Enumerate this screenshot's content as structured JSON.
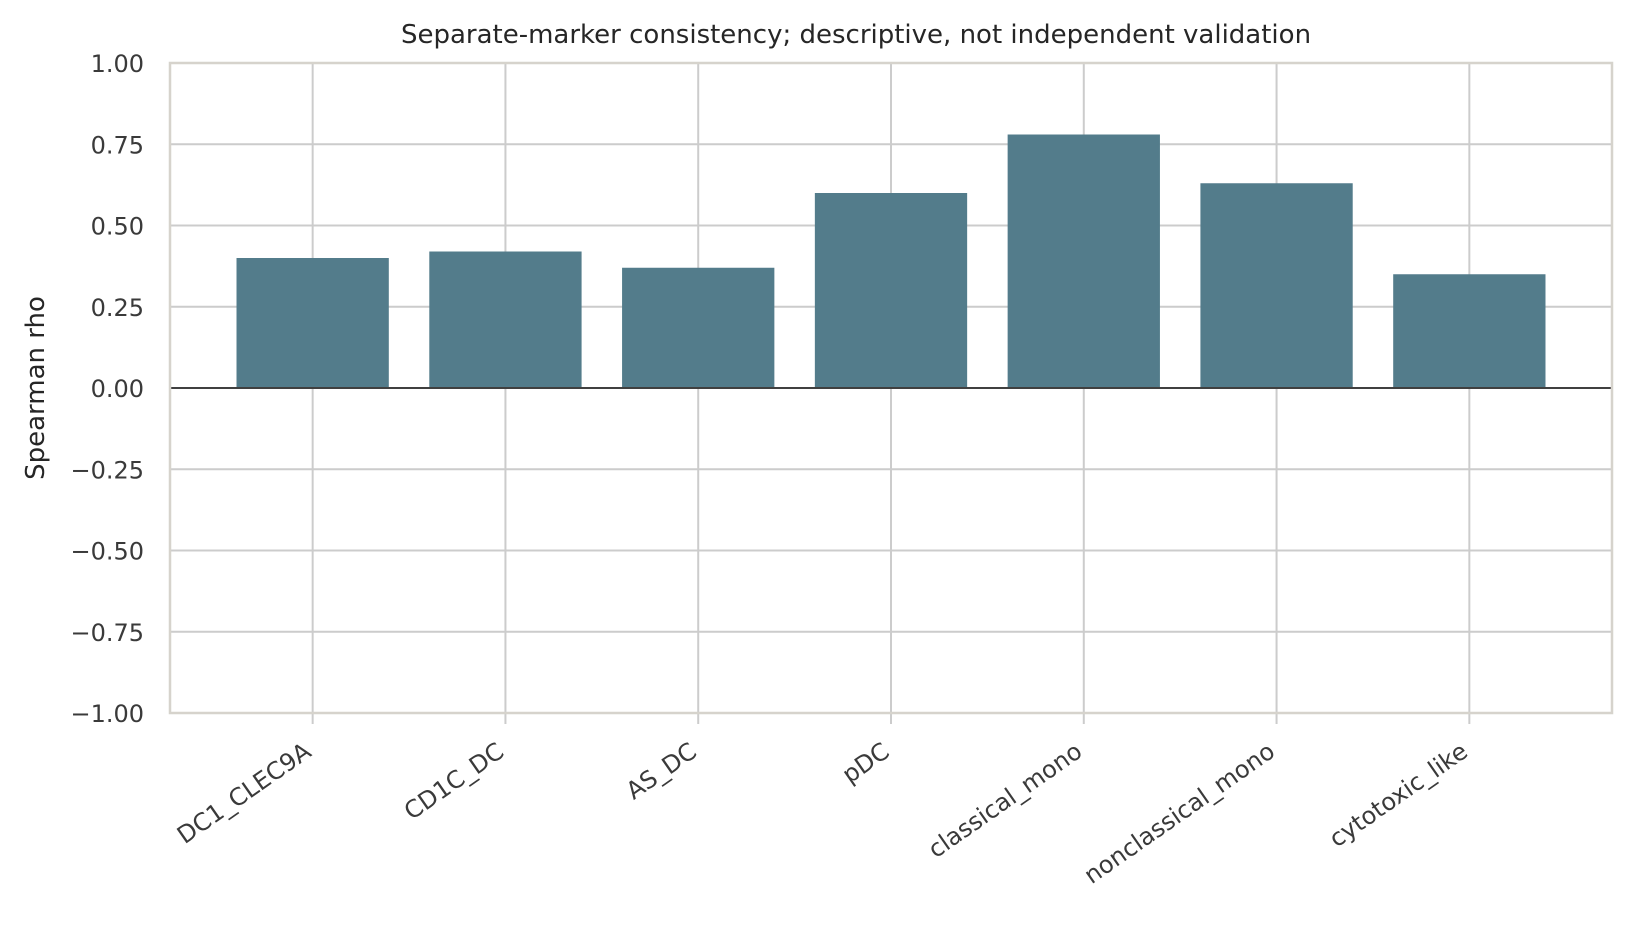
{
  "chart_data": {
    "type": "bar",
    "title": "Separate-marker consistency; descriptive, not independent validation",
    "xlabel": "",
    "ylabel": "Spearman rho",
    "categories": [
      "DC1_CLEC9A",
      "CD1C_DC",
      "AS_DC",
      "pDC",
      "classical_mono",
      "nonclassical_mono",
      "cytotoxic_like"
    ],
    "values": [
      0.4,
      0.42,
      0.37,
      0.6,
      0.78,
      0.63,
      0.35
    ],
    "ylim": [
      -1.0,
      1.0
    ],
    "yticks": [
      "1.00",
      "0.75",
      "0.50",
      "0.25",
      "0.00",
      "−0.25",
      "−0.50",
      "−0.75",
      "−1.00"
    ],
    "ytick_values": [
      1.0,
      0.75,
      0.5,
      0.25,
      0.0,
      -0.25,
      -0.5,
      -0.75,
      -1.0
    ],
    "grid": true,
    "zero_line": true,
    "colors": {
      "bar": "#537c8b",
      "grid": "#cccccc",
      "frame": "#d6d3cc",
      "zero_line": "#404040"
    }
  }
}
